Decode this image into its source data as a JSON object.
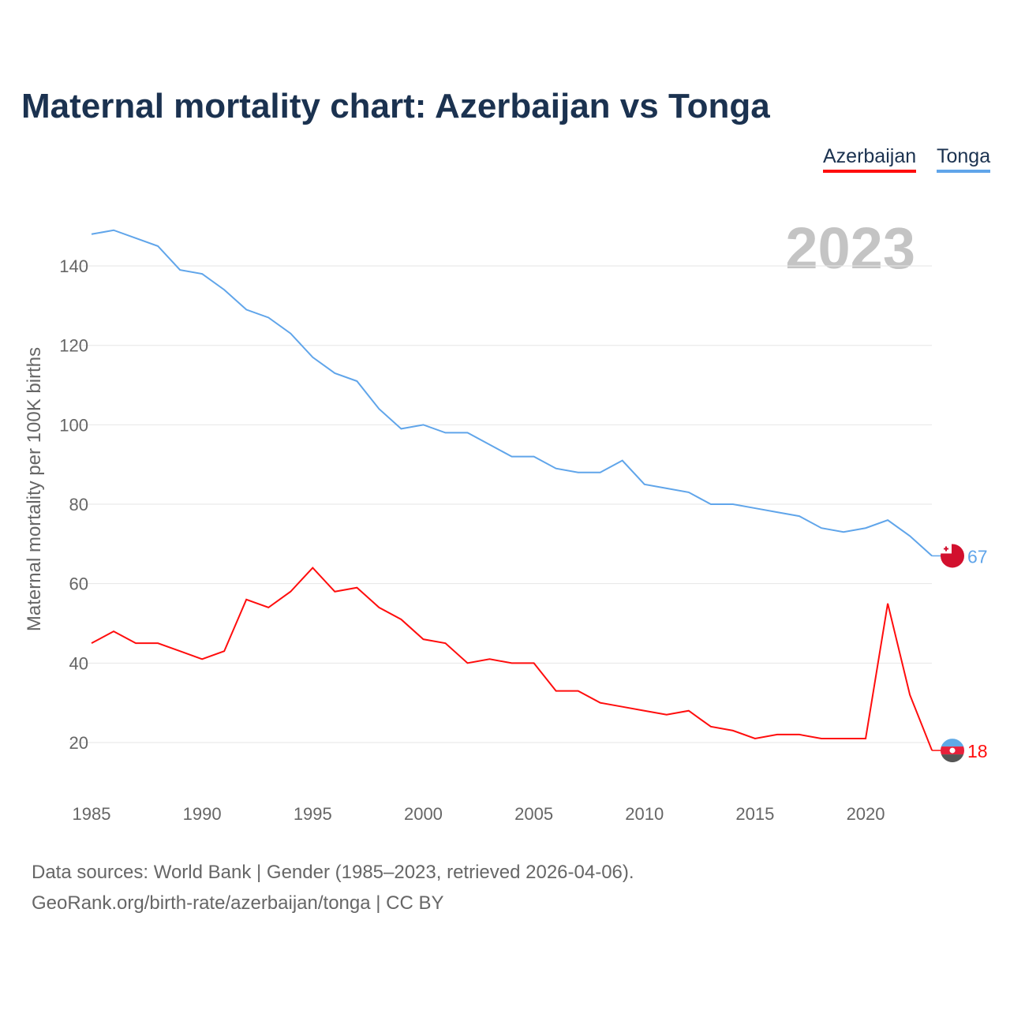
{
  "title": "Maternal mortality chart: Azerbaijan vs Tonga",
  "year_label": "2023",
  "source_line1": "Data sources: World Bank | Gender (1985–2023, retrieved 2026-04-06).",
  "source_line2": "GeoRank.org/birth-rate/azerbaijan/tonga | CC BY",
  "chart_data": {
    "type": "line",
    "title": "Maternal mortality chart: Azerbaijan vs Tonga",
    "xlabel": "",
    "ylabel": "Maternal mortality per 100K births",
    "xlim": [
      1985,
      2023
    ],
    "ylim": [
      10,
      150
    ],
    "yticks": [
      20,
      40,
      60,
      80,
      100,
      120,
      140
    ],
    "xticks": [
      1985,
      1990,
      1995,
      2000,
      2005,
      2010,
      2015,
      2020
    ],
    "grid": true,
    "legend": "top-right",
    "x": [
      1985,
      1986,
      1987,
      1988,
      1989,
      1990,
      1991,
      1992,
      1993,
      1994,
      1995,
      1996,
      1997,
      1998,
      1999,
      2000,
      2001,
      2002,
      2003,
      2004,
      2005,
      2006,
      2007,
      2008,
      2009,
      2010,
      2011,
      2012,
      2013,
      2014,
      2015,
      2016,
      2017,
      2018,
      2019,
      2020,
      2021,
      2022,
      2023
    ],
    "series": [
      {
        "name": "Azerbaijan",
        "color": "#ff0d0d",
        "end_label": "18",
        "values": [
          45,
          48,
          45,
          45,
          43,
          41,
          43,
          56,
          54,
          58,
          64,
          58,
          59,
          54,
          51,
          46,
          45,
          40,
          41,
          40,
          40,
          33,
          33,
          30,
          29,
          28,
          27,
          28,
          24,
          23,
          21,
          22,
          22,
          21,
          21,
          21,
          55,
          32,
          18
        ]
      },
      {
        "name": "Tonga",
        "color": "#60a5ea",
        "end_label": "67",
        "values": [
          148,
          149,
          147,
          145,
          139,
          138,
          134,
          129,
          127,
          123,
          117,
          113,
          111,
          104,
          99,
          100,
          98,
          98,
          95,
          92,
          92,
          89,
          88,
          88,
          91,
          85,
          84,
          83,
          80,
          80,
          79,
          78,
          77,
          74,
          73,
          74,
          76,
          72,
          67
        ]
      }
    ]
  }
}
